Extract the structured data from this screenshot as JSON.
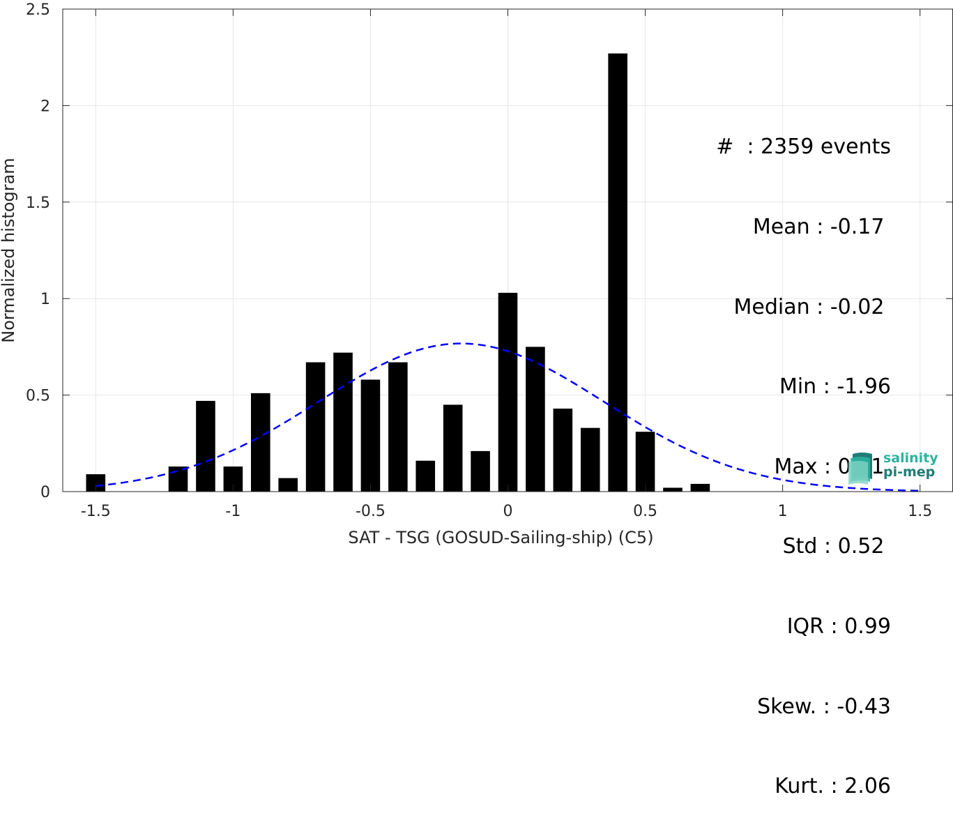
{
  "chart_data": {
    "type": "bar",
    "xlabel": "SAT - TSG (GOSUD-Sailing-ship) (C5)",
    "ylabel": "Normalized histogram",
    "xlim": [
      -1.62,
      1.62
    ],
    "ylim": [
      0,
      2.5
    ],
    "xticks": [
      -1.5,
      -1,
      -0.5,
      0,
      0.5,
      1,
      1.5
    ],
    "xtick_labels": [
      "-1.5",
      "-1",
      "-0.5",
      "0",
      "0.5",
      "1",
      "1.5"
    ],
    "yticks": [
      0,
      0.5,
      1,
      1.5,
      2,
      2.5
    ],
    "ytick_labels": [
      "0",
      "0.5",
      "1",
      "1.5",
      "2",
      "2.5"
    ],
    "grid": true,
    "bar_width": 0.07,
    "bars": [
      {
        "x": -1.5,
        "value": 0.09
      },
      {
        "x": -1.2,
        "value": 0.13
      },
      {
        "x": -1.1,
        "value": 0.47
      },
      {
        "x": -1.0,
        "value": 0.13
      },
      {
        "x": -0.9,
        "value": 0.51
      },
      {
        "x": -0.8,
        "value": 0.07
      },
      {
        "x": -0.7,
        "value": 0.67
      },
      {
        "x": -0.6,
        "value": 0.72
      },
      {
        "x": -0.5,
        "value": 0.58
      },
      {
        "x": -0.4,
        "value": 0.67
      },
      {
        "x": -0.3,
        "value": 0.16
      },
      {
        "x": -0.2,
        "value": 0.45
      },
      {
        "x": -0.1,
        "value": 0.21
      },
      {
        "x": 0.0,
        "value": 1.03
      },
      {
        "x": 0.1,
        "value": 0.75
      },
      {
        "x": 0.2,
        "value": 0.43
      },
      {
        "x": 0.3,
        "value": 0.33
      },
      {
        "x": 0.4,
        "value": 2.27
      },
      {
        "x": 0.5,
        "value": 0.31
      },
      {
        "x": 0.6,
        "value": 0.02
      },
      {
        "x": 0.7,
        "value": 0.04
      }
    ],
    "fit": {
      "type": "gaussian",
      "mean": -0.17,
      "std": 0.52,
      "x_range": [
        -1.5,
        1.5
      ],
      "color": "#0000ff",
      "style": "dashed"
    },
    "bar_color": "#000000"
  },
  "stats": {
    "lines": [
      "#  : 2359 events",
      "Mean : -0.17 ",
      "Median : -0.02 ",
      "Min : -1.96",
      "Max : 0.71 ",
      "Std : 0.52 ",
      "IQR : 0.99",
      "Skew. : -0.43",
      "Kurt. : 2.06"
    ]
  },
  "logo": {
    "line1": "salinity",
    "line2": "pi-mep",
    "colors": [
      "#2bb3a0",
      "#1f7d78"
    ]
  }
}
